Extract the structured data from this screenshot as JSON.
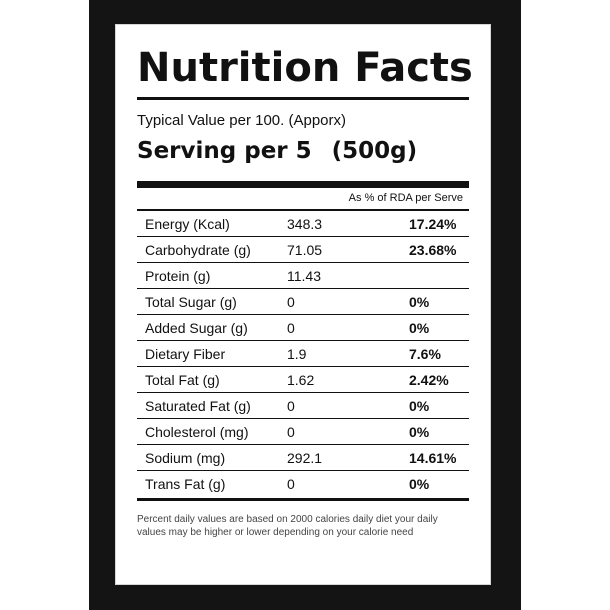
{
  "label": {
    "title": "Nutrition Facts",
    "typical": "Typical Value per 100. (Apporx)",
    "serving_main": "Serving per 5",
    "serving_weight": "(500g)",
    "rda_header": "As % of RDA per Serve",
    "rows": [
      {
        "name": "Energy (Kcal)",
        "value": "348.3",
        "pct": "17.24%"
      },
      {
        "name": "Carbohydrate (g)",
        "value": "71.05",
        "pct": "23.68%"
      },
      {
        "name": "Protein (g)",
        "value": "11.43",
        "pct": ""
      },
      {
        "name": "Total Sugar (g)",
        "value": "0",
        "pct": "0%"
      },
      {
        "name": "Added Sugar (g)",
        "value": "0",
        "pct": "0%"
      },
      {
        "name": "Dietary Fiber",
        "value": "1.9",
        "pct": "7.6%"
      },
      {
        "name": "Total Fat (g)",
        "value": "1.62",
        "pct": "2.42%"
      },
      {
        "name": "Saturated Fat (g)",
        "value": "0",
        "pct": "0%"
      },
      {
        "name": "Cholesterol (mg)",
        "value": "0",
        "pct": "0%"
      },
      {
        "name": "Sodium (mg)",
        "value": "292.1",
        "pct": "14.61%"
      },
      {
        "name": "Trans Fat (g)",
        "value": "0",
        "pct": "0%"
      }
    ],
    "footnote": "Percent daily values are based on 2000 calories daily diet your daily values may be higher or lower depending on your calorie need"
  },
  "colors": {
    "frame": "#141414",
    "card": "#ffffff",
    "ink": "#111111"
  }
}
